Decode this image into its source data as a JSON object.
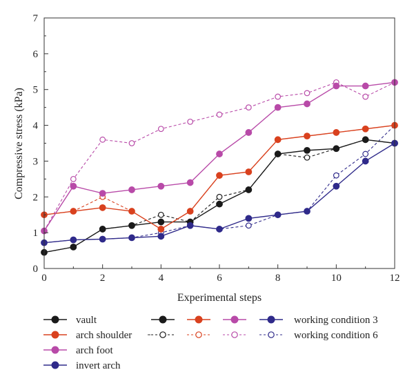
{
  "chart_data": {
    "type": "line",
    "title": "",
    "xlabel": "Experimental steps",
    "ylabel": "Compressive stress (kPa)",
    "xlim": [
      0,
      12
    ],
    "ylim": [
      0,
      7
    ],
    "xticks": [
      "0",
      "2",
      "4",
      "6",
      "8",
      "10",
      "12"
    ],
    "yticks": [
      "0",
      "1",
      "2",
      "3",
      "4",
      "5",
      "6",
      "7"
    ],
    "grid": false,
    "legend": "bottom",
    "x": [
      0,
      1,
      2,
      3,
      4,
      5,
      6,
      7,
      8,
      9,
      10,
      11,
      12
    ],
    "series": [
      {
        "name": "vault",
        "color": "#1a1a1a",
        "condition": "working condition 3",
        "values": [
          0.45,
          0.6,
          1.1,
          1.2,
          1.3,
          1.3,
          1.8,
          2.2,
          3.2,
          3.3,
          3.35,
          3.6,
          3.5
        ]
      },
      {
        "name": "arch shoulder",
        "color": "#d9411e",
        "condition": "working condition 3",
        "values": [
          1.5,
          1.6,
          1.7,
          1.6,
          1.1,
          1.6,
          2.6,
          2.7,
          3.6,
          3.7,
          3.8,
          3.9,
          4.0
        ]
      },
      {
        "name": "arch foot",
        "color": "#b84aa8",
        "condition": "working condition 3",
        "values": [
          1.05,
          2.3,
          2.1,
          2.2,
          2.3,
          2.4,
          3.2,
          3.8,
          4.5,
          4.6,
          5.1,
          5.1,
          5.2
        ]
      },
      {
        "name": "invert arch",
        "color": "#2f2a8a",
        "condition": "working condition 3",
        "values": [
          0.72,
          0.8,
          0.82,
          0.86,
          0.9,
          1.2,
          1.1,
          1.4,
          1.5,
          1.6,
          2.3,
          3.0,
          3.5
        ]
      },
      {
        "name": "vault",
        "color": "#1a1a1a",
        "condition": "working condition 6",
        "values": [
          0.45,
          0.6,
          1.1,
          1.2,
          1.5,
          1.3,
          2.0,
          2.2,
          3.2,
          3.1,
          3.35,
          3.6,
          3.5
        ]
      },
      {
        "name": "arch shoulder",
        "color": "#d9411e",
        "condition": "working condition 6",
        "values": [
          1.5,
          1.6,
          2.0,
          1.6,
          1.1,
          1.6,
          2.6,
          2.7,
          3.6,
          3.7,
          3.8,
          3.9,
          4.0
        ]
      },
      {
        "name": "arch foot",
        "color": "#b84aa8",
        "condition": "working condition 6",
        "values": [
          1.05,
          2.5,
          3.6,
          3.5,
          3.9,
          4.1,
          4.3,
          4.5,
          4.8,
          4.9,
          5.2,
          4.8,
          5.2
        ]
      },
      {
        "name": "invert arch",
        "color": "#2f2a8a",
        "condition": "working condition 6",
        "values": [
          0.72,
          0.8,
          0.82,
          0.86,
          1.0,
          1.2,
          1.1,
          1.2,
          1.5,
          1.6,
          2.6,
          3.2,
          4.0
        ]
      }
    ],
    "legend_items": {
      "positions": [
        "vault",
        "arch shoulder",
        "arch foot",
        "invert arch"
      ],
      "conditions": [
        "working condition 3",
        "working condition 6"
      ]
    }
  }
}
